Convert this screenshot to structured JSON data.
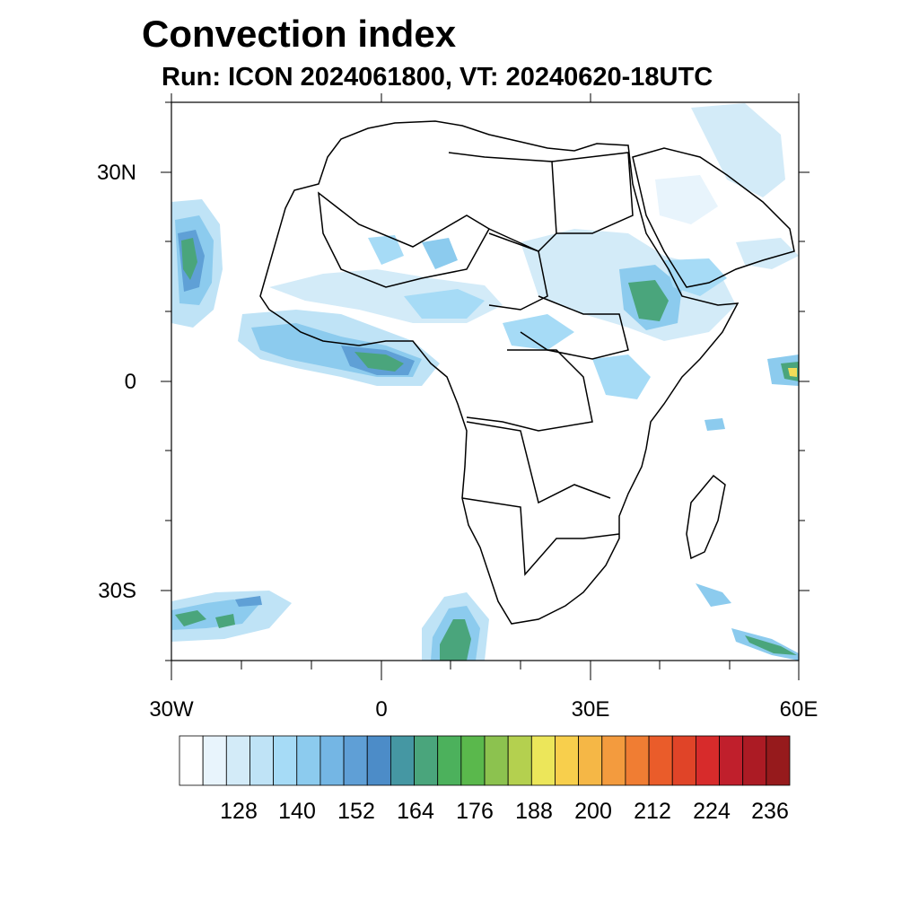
{
  "header": {
    "title": "Convection index",
    "subtitle": "Run: ICON 2024061800,  VT: 20240620-18UTC"
  },
  "map": {
    "lon_range": [
      -30,
      60
    ],
    "lat_range": [
      -40,
      40
    ],
    "lat_ticks": [
      {
        "value": 30,
        "label": "30N"
      },
      {
        "value": 0,
        "label": "0"
      },
      {
        "value": -30,
        "label": "30S"
      }
    ],
    "lon_ticks": [
      {
        "value": -30,
        "label": "30W"
      },
      {
        "value": 0,
        "label": "0"
      },
      {
        "value": 30,
        "label": "30E"
      },
      {
        "value": 60,
        "label": "60E"
      }
    ]
  },
  "colorbar": {
    "labels": [
      "128",
      "140",
      "152",
      "164",
      "176",
      "188",
      "200",
      "212",
      "224",
      "236"
    ],
    "colors": [
      "#ffffff",
      "#e8f4fc",
      "#d3ebf8",
      "#bfe3f6",
      "#a6dbf6",
      "#8ccbee",
      "#74b6e4",
      "#5f9fd6",
      "#4c8cc8",
      "#4597a3",
      "#4aa57c",
      "#4cb15c",
      "#5ab84c",
      "#8cc24f",
      "#b4d04f",
      "#ece65a",
      "#f8cf4c",
      "#f5b746",
      "#f39b3e",
      "#f07d33",
      "#ea5c2a",
      "#e04428",
      "#d72b2b",
      "#c01f2c",
      "#ac1b24",
      "#961a1c"
    ]
  }
}
